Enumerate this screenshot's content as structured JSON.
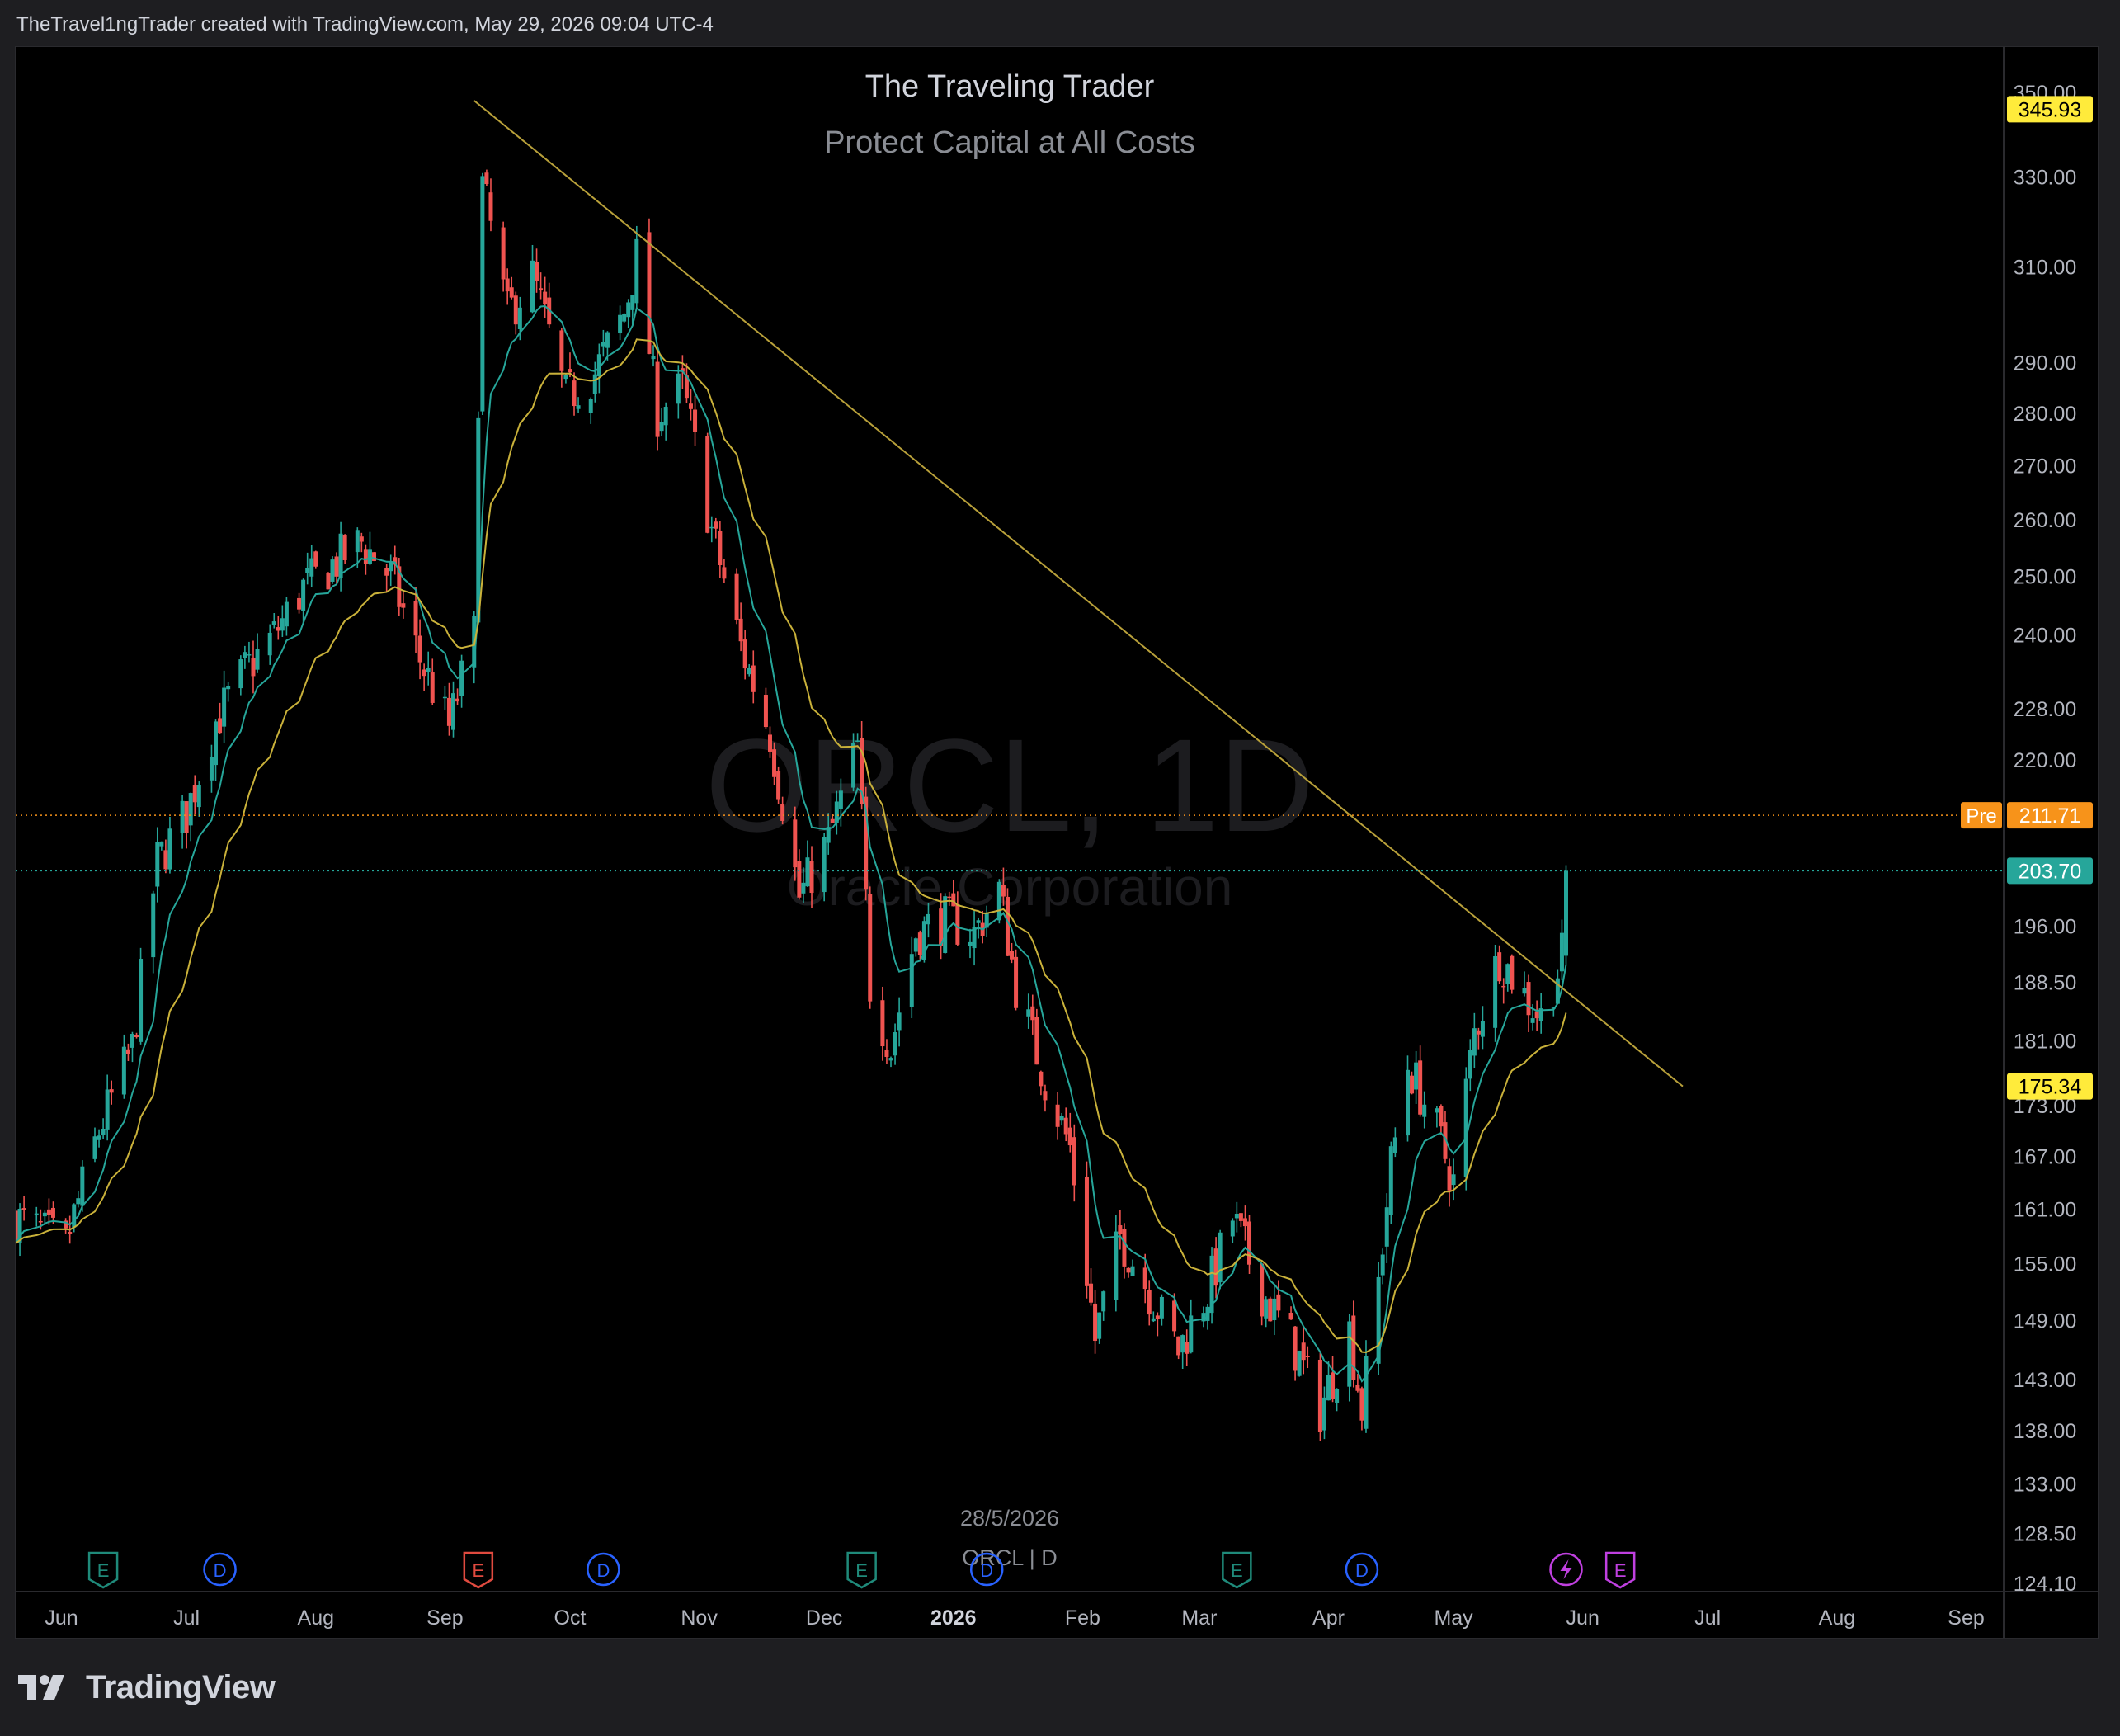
{
  "header": {
    "text": "TheTravel1ngTrader created with TradingView.com, May 29, 2026 09:04 UTC-4"
  },
  "footer": {
    "brand": "TradingView",
    "logo_icon": "tradingview-logo-icon"
  },
  "colors": {
    "background": "#000000",
    "up": "#26a69a",
    "down": "#ef5350",
    "ema_fast": "#26a69a",
    "ema_slow": "#c9b13a",
    "trendline": "#b8a03a",
    "pre_label": "#f7931a",
    "last_label": "#26a69a",
    "high_label": "#ffeb3b"
  },
  "chart_data": {
    "type": "candlestick",
    "symbol": "ORCL, 1D",
    "company": "Oracle Corporation",
    "title": "The Traveling Trader",
    "subtitle": "Protect Capital at All Costs",
    "y_scale": "log",
    "ylim": [
      124.1,
      350.0
    ],
    "y_ticks": [
      "350.00",
      "330.00",
      "310.00",
      "290.00",
      "280.00",
      "270.00",
      "260.00",
      "250.00",
      "240.00",
      "228.00",
      "220.00",
      "196.00",
      "188.50",
      "181.00",
      "173.00",
      "167.00",
      "161.00",
      "155.00",
      "149.00",
      "143.00",
      "138.00",
      "133.00",
      "128.50",
      "124.10"
    ],
    "x_ticks": [
      "Jun",
      "Jul",
      "Aug",
      "Sep",
      "Oct",
      "Nov",
      "Dec",
      "2026",
      "Feb",
      "Mar",
      "Apr",
      "May",
      "Jun",
      "Jul",
      "Aug",
      "Sep"
    ],
    "x_range": [
      "2025-05-21",
      "2026-09-10"
    ],
    "price_labels": [
      {
        "name": "high",
        "value": "345.93"
      },
      {
        "name": "pre",
        "prefix": "Pre",
        "value": "211.71"
      },
      {
        "name": "last",
        "value": "203.70"
      },
      {
        "name": "trendline",
        "value": "175.34"
      }
    ],
    "crosshair_date": "28/5/2026",
    "crosshair_series": "ORCL | D",
    "trendline": {
      "from": {
        "date": "2025-09-08",
        "price": 348
      },
      "to": {
        "date": "2026-06-25",
        "price": 175.34
      }
    },
    "series_key_points": [
      [
        "2025-05-21",
        160
      ],
      [
        "2025-06-02",
        157
      ],
      [
        "2025-06-10",
        170
      ],
      [
        "2025-06-18",
        180
      ],
      [
        "2025-06-24",
        205
      ],
      [
        "2025-07-01",
        212
      ],
      [
        "2025-07-08",
        226
      ],
      [
        "2025-07-15",
        234
      ],
      [
        "2025-07-22",
        240
      ],
      [
        "2025-07-29",
        248
      ],
      [
        "2025-08-05",
        252
      ],
      [
        "2025-08-12",
        256
      ],
      [
        "2025-08-19",
        250
      ],
      [
        "2025-08-26",
        236
      ],
      [
        "2025-09-02",
        225
      ],
      [
        "2025-09-08",
        240
      ],
      [
        "2025-09-10",
        328
      ],
      [
        "2025-09-16",
        300
      ],
      [
        "2025-09-22",
        308
      ],
      [
        "2025-09-30",
        283
      ],
      [
        "2025-10-07",
        288
      ],
      [
        "2025-10-14",
        300
      ],
      [
        "2025-10-17",
        312
      ],
      [
        "2025-10-22",
        280
      ],
      [
        "2025-10-28",
        285
      ],
      [
        "2025-11-04",
        258
      ],
      [
        "2025-11-11",
        238
      ],
      [
        "2025-11-18",
        224
      ],
      [
        "2025-11-25",
        200
      ],
      [
        "2025-12-02",
        208
      ],
      [
        "2025-12-09",
        222
      ],
      [
        "2025-12-12",
        188
      ],
      [
        "2025-12-17",
        180
      ],
      [
        "2025-12-23",
        195
      ],
      [
        "2025-12-30",
        197
      ],
      [
        "2026-01-06",
        195
      ],
      [
        "2026-01-12",
        201
      ],
      [
        "2026-01-16",
        188
      ],
      [
        "2026-01-23",
        176
      ],
      [
        "2026-01-29",
        168
      ],
      [
        "2026-02-04",
        147
      ],
      [
        "2026-02-10",
        158
      ],
      [
        "2026-02-17",
        152
      ],
      [
        "2026-02-24",
        146
      ],
      [
        "2026-03-03",
        152
      ],
      [
        "2026-03-09",
        160
      ],
      [
        "2026-03-16",
        152
      ],
      [
        "2026-03-23",
        147
      ],
      [
        "2026-03-30",
        140
      ],
      [
        "2026-04-06",
        148
      ],
      [
        "2026-04-09",
        140
      ],
      [
        "2026-04-13",
        153
      ],
      [
        "2026-04-16",
        166
      ],
      [
        "2026-04-20",
        178
      ],
      [
        "2026-04-27",
        170
      ],
      [
        "2026-05-01",
        164
      ],
      [
        "2026-05-06",
        182
      ],
      [
        "2026-05-12",
        192
      ],
      [
        "2026-05-19",
        186
      ],
      [
        "2026-05-22",
        184
      ],
      [
        "2026-05-26",
        190
      ],
      [
        "2026-05-28",
        194
      ]
    ],
    "events": [
      {
        "date": "2025-06-11",
        "type": "E",
        "kind": "earnings"
      },
      {
        "date": "2025-07-09",
        "type": "D",
        "kind": "dividend"
      },
      {
        "date": "2025-09-09",
        "type": "E",
        "kind": "earnings-miss"
      },
      {
        "date": "2025-10-09",
        "type": "D",
        "kind": "dividend"
      },
      {
        "date": "2025-12-10",
        "type": "E",
        "kind": "earnings"
      },
      {
        "date": "2026-01-09",
        "type": "D",
        "kind": "dividend"
      },
      {
        "date": "2026-03-10",
        "type": "E",
        "kind": "earnings"
      },
      {
        "date": "2026-04-09",
        "type": "D",
        "kind": "dividend"
      },
      {
        "date": "2026-05-28",
        "type": "flash",
        "kind": "news"
      },
      {
        "date": "2026-06-10",
        "type": "E",
        "kind": "upcoming-earnings"
      }
    ]
  }
}
